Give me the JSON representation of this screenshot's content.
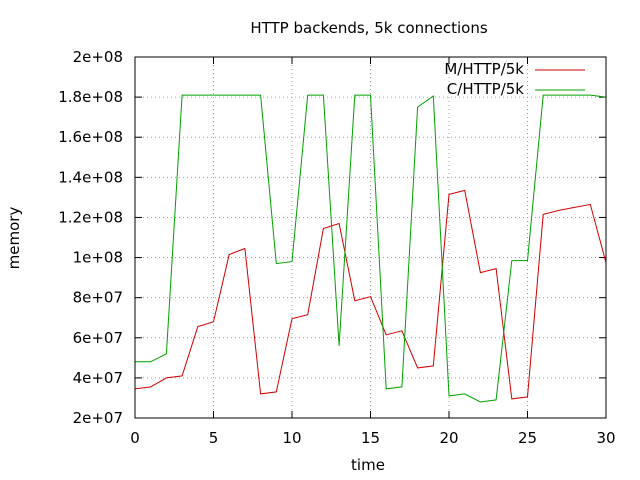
{
  "chart_data": {
    "type": "line",
    "title": "HTTP backends, 5k connections",
    "xlabel": "time",
    "ylabel": "memory",
    "xlim": [
      0,
      30
    ],
    "ylim": [
      20000000,
      200000000
    ],
    "x_ticks": [
      0,
      5,
      10,
      15,
      20,
      25,
      30
    ],
    "x_tick_labels": [
      "0",
      "5",
      "10",
      "15",
      "20",
      "25",
      "30"
    ],
    "y_ticks": [
      20000000,
      40000000,
      60000000,
      80000000,
      100000000,
      120000000,
      140000000,
      160000000,
      180000000,
      200000000
    ],
    "y_tick_labels": [
      "2e+07",
      "4e+07",
      "6e+07",
      "8e+07",
      "1e+08",
      "1.2e+08",
      "1.4e+08",
      "1.6e+08",
      "1.8e+08",
      "2e+08"
    ],
    "grid": true,
    "legend_position": "top-right",
    "series": [
      {
        "name": "M/HTTP/5k",
        "color": "#d00000",
        "x": [
          0,
          1,
          2,
          3,
          4,
          5,
          6,
          7,
          8,
          9,
          10,
          11,
          12,
          13,
          14,
          15,
          16,
          17,
          18,
          19,
          20,
          21,
          22,
          23,
          24,
          25,
          26,
          27,
          28,
          29,
          30
        ],
        "values": [
          34500000,
          35500000,
          40000000,
          41000000,
          65500000,
          68000000,
          101500000,
          104500000,
          32000000,
          33000000,
          69500000,
          71500000,
          114500000,
          117000000,
          78500000,
          80500000,
          61500000,
          63500000,
          45000000,
          46000000,
          131500000,
          133500000,
          92500000,
          94500000,
          29500000,
          30500000,
          121500000,
          123500000,
          125000000,
          126500000,
          97500000
        ]
      },
      {
        "name": "C/HTTP/5k",
        "color": "#00a000",
        "x": [
          0,
          1,
          2,
          3,
          4,
          5,
          6,
          7,
          8,
          9,
          10,
          11,
          12,
          13,
          14,
          15,
          16,
          17,
          18,
          19,
          20,
          21,
          22,
          23,
          24,
          25,
          26,
          27,
          28,
          29,
          30
        ],
        "values": [
          48000000,
          48000000,
          52000000,
          181000000,
          181000000,
          181000000,
          181000000,
          181000000,
          181000000,
          97000000,
          98000000,
          181000000,
          181000000,
          56000000,
          181000000,
          181000000,
          34500000,
          35500000,
          175000000,
          180500000,
          31000000,
          32000000,
          28000000,
          29000000,
          98500000,
          98500000,
          181000000,
          181000000,
          181000000,
          181000000,
          180000000
        ]
      }
    ]
  }
}
